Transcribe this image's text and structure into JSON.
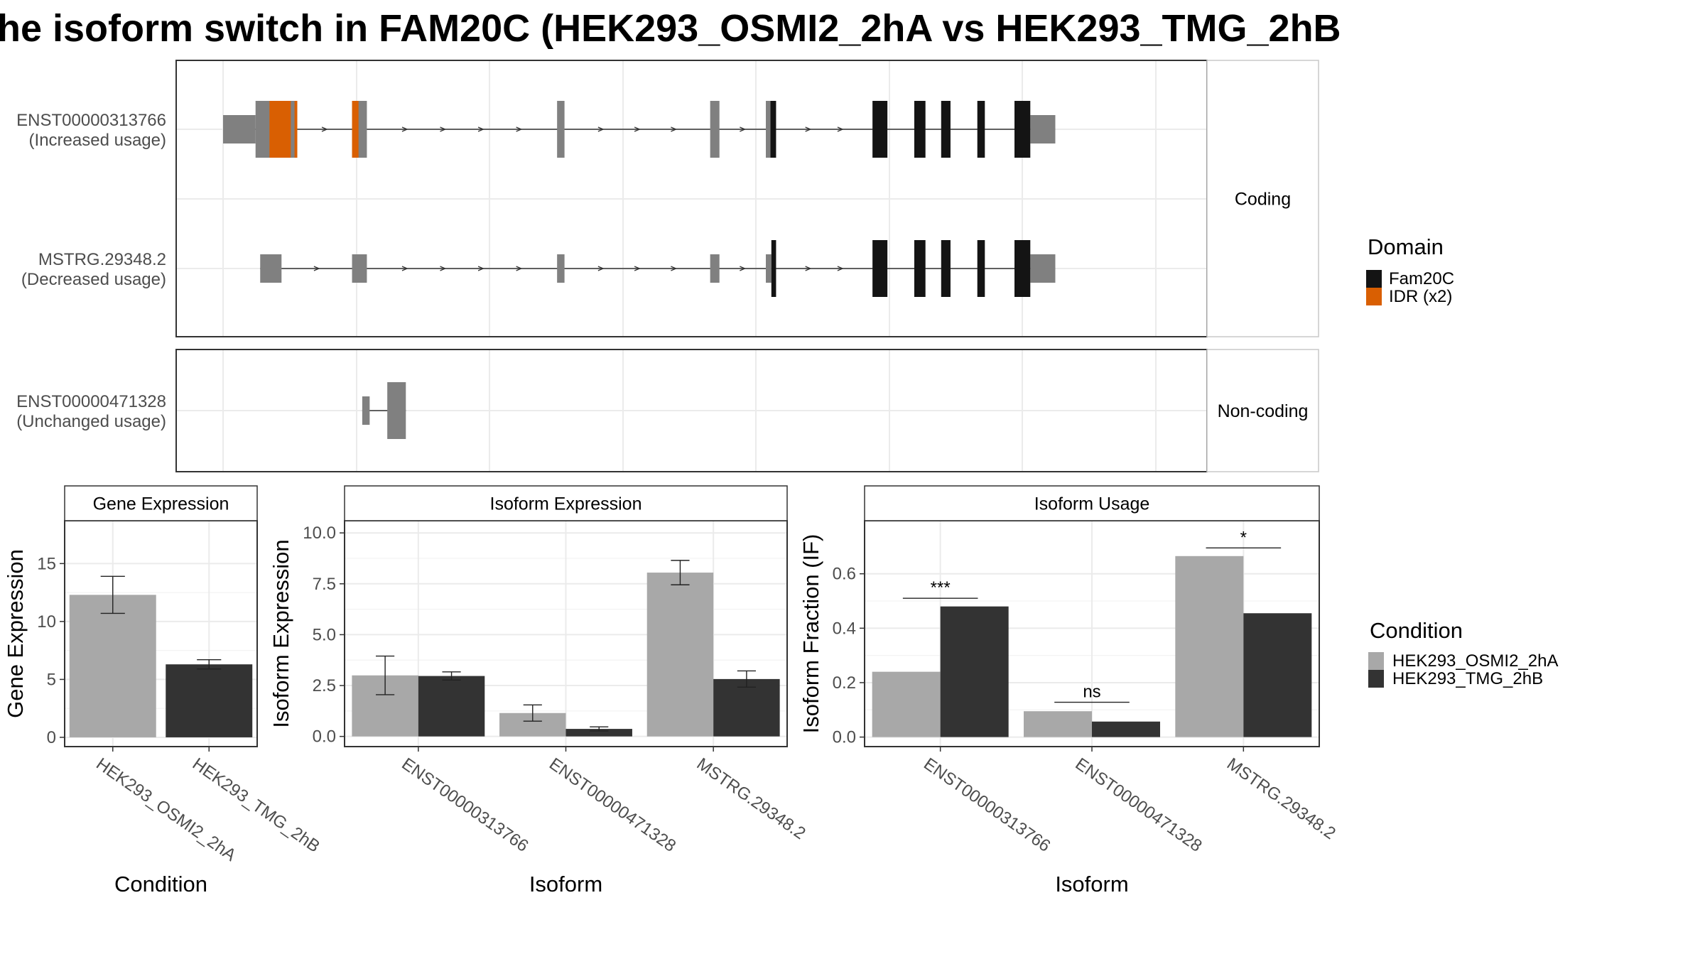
{
  "colors": {
    "exon": "#808080",
    "fam20c": "#141414",
    "idr": "#D95F02",
    "cond1": "#A8A8A8",
    "cond2": "#333333",
    "grid": "#ebebeb",
    "strip": "#ffffff"
  },
  "chart_data": [
    {
      "type": "gene-structure",
      "title": "he isoform switch in FAM20C (HEK293_OSMI2_2hA vs HEK293_TMG_2hB",
      "legend_title": "Domain",
      "legend_items": [
        {
          "name": "Fam20C",
          "color": "#141414"
        },
        {
          "name": "IDR (x2)",
          "color": "#D95F02"
        }
      ],
      "groups": [
        {
          "label": "Coding",
          "isoforms": [
            {
              "id": "ENST00000313766",
              "usage": "(Increased usage)",
              "utr5": [
                [
                  0,
                  35
                ]
              ],
              "cds": [
                [
                  35,
                  80
                ],
                [
                  139,
                  155
                ],
                [
                  360,
                  368
                ],
                [
                  525,
                  535
                ],
                [
                  585,
                  596
                ],
                [
                  700,
                  716
                ],
                [
                  745,
                  757
                ],
                [
                  774,
                  784
                ],
                [
                  813,
                  821
                ],
                [
                  853,
                  870
                ]
              ],
              "utr3": [
                [
                  870,
                  897
                ]
              ],
              "idr": [
                [
                  50,
                  73
                ],
                [
                  77,
                  80
                ],
                [
                  139,
                  146
                ]
              ],
              "fam20c": [
                [
                  590,
                  596
                ],
                [
                  700,
                  716
                ],
                [
                  745,
                  757
                ],
                [
                  774,
                  784
                ],
                [
                  813,
                  821
                ],
                [
                  853,
                  870
                ]
              ]
            },
            {
              "id": "MSTRG.29348.2",
              "usage": "(Decreased usage)",
              "utr5": [
                [
                  40,
                  63
                ],
                [
                  139,
                  155
                ],
                [
                  360,
                  368
                ],
                [
                  525,
                  535
                ],
                [
                  585,
                  591
                ]
              ],
              "cds": [
                [
                  591,
                  596
                ],
                [
                  700,
                  716
                ],
                [
                  745,
                  757
                ],
                [
                  774,
                  784
                ],
                [
                  813,
                  821
                ],
                [
                  853,
                  870
                ]
              ],
              "utr3": [
                [
                  870,
                  897
                ]
              ],
              "idr": [],
              "fam20c": [
                [
                  591,
                  596
                ],
                [
                  700,
                  716
                ],
                [
                  745,
                  757
                ],
                [
                  774,
                  784
                ],
                [
                  813,
                  821
                ],
                [
                  853,
                  870
                ]
              ]
            }
          ]
        },
        {
          "label": "Non-coding",
          "isoforms": [
            {
              "id": "ENST00000471328",
              "usage": "(Unchanged usage)",
              "utr5": [
                [
                  150,
                  158
                ]
              ],
              "cds": [
                [
                  177,
                  197
                ]
              ],
              "utr3": [],
              "idr": [],
              "fam20c": []
            }
          ]
        }
      ]
    },
    {
      "type": "bar",
      "title": "Gene Expression",
      "ylabel": "Gene Expression",
      "xlabel": "Condition",
      "categories": [
        "HEK293_OSMI2_2hA",
        "HEK293_TMG_2hB"
      ],
      "values": [
        12.3,
        6.3
      ],
      "error": [
        [
          10.7,
          13.9
        ],
        [
          5.9,
          6.7
        ]
      ],
      "yticks": [
        0,
        5,
        10,
        15
      ],
      "ylim": [
        -0.8,
        18.7
      ]
    },
    {
      "type": "bar",
      "title": "Isoform Expression",
      "ylabel": "Isoform Expression",
      "xlabel": "Isoform",
      "categories": [
        "ENST00000313766",
        "ENST00000471328",
        "MSTRG.29348.2"
      ],
      "series": [
        {
          "name": "HEK293_OSMI2_2hA",
          "values": [
            3.0,
            1.15,
            8.05
          ],
          "error": [
            [
              2.05,
              3.95
            ],
            [
              0.75,
              1.55
            ],
            [
              7.45,
              8.65
            ]
          ]
        },
        {
          "name": "HEK293_TMG_2hB",
          "values": [
            2.97,
            0.37,
            2.82
          ],
          "error": [
            [
              2.77,
              3.17
            ],
            [
              0.27,
              0.47
            ],
            [
              2.42,
              3.22
            ]
          ]
        }
      ],
      "yticks": [
        "0.0",
        "2.5",
        "5.0",
        "7.5",
        "10.0"
      ],
      "ylim": [
        -0.5,
        10.6
      ]
    },
    {
      "type": "bar",
      "title": "Isoform Usage",
      "ylabel": "Isoform Fraction (IF)",
      "xlabel": "Isoform",
      "categories": [
        "ENST00000313766",
        "ENST00000471328",
        "MSTRG.29348.2"
      ],
      "series": [
        {
          "name": "HEK293_OSMI2_2hA",
          "values": [
            0.24,
            0.095,
            0.665
          ]
        },
        {
          "name": "HEK293_TMG_2hB",
          "values": [
            0.48,
            0.057,
            0.455
          ]
        }
      ],
      "significance": [
        "***",
        "ns",
        "*"
      ],
      "sig_y": [
        0.51,
        0.128,
        0.695
      ],
      "yticks": [
        "0.0",
        "0.2",
        "0.4",
        "0.6"
      ],
      "ylim": [
        -0.035,
        0.795
      ]
    }
  ],
  "legend_condition": {
    "title": "Condition",
    "items": [
      {
        "name": "HEK293_OSMI2_2hA",
        "color": "#A8A8A8"
      },
      {
        "name": "HEK293_TMG_2hB",
        "color": "#333333"
      }
    ]
  }
}
